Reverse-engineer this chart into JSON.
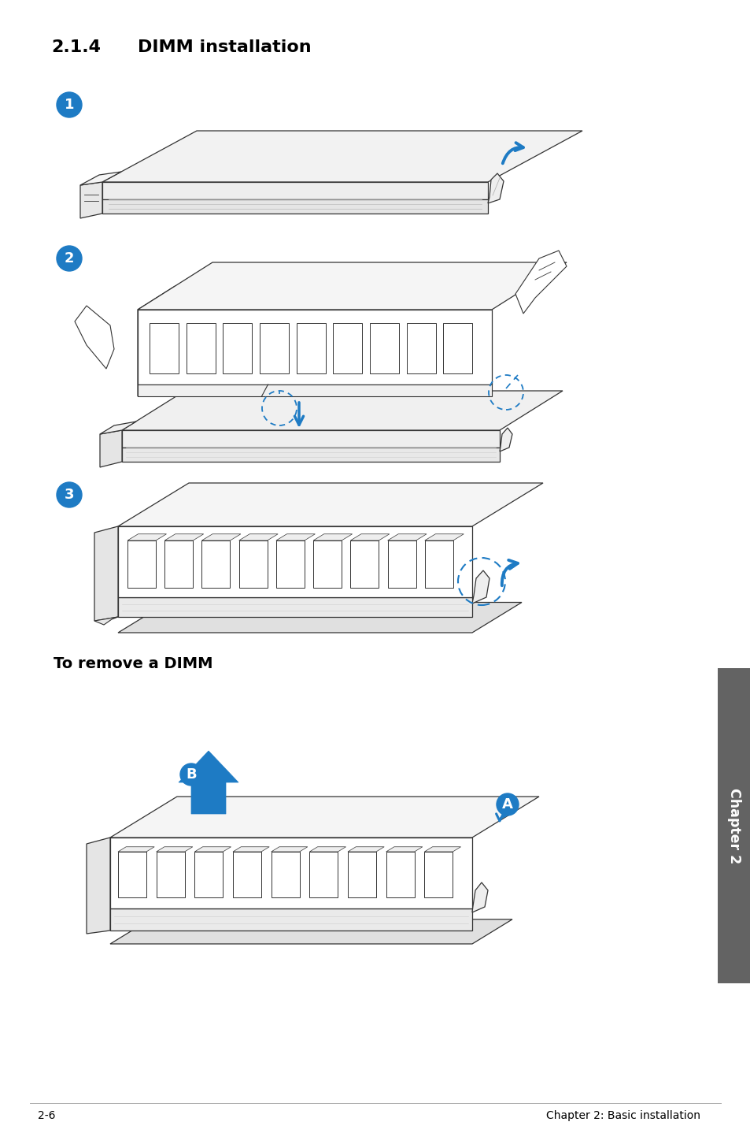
{
  "title_prefix": "2.1.4",
  "title_main": "DIMM installation",
  "footer_left": "2-6",
  "footer_right": "Chapter 2: Basic installation",
  "to_remove_text": "To remove a DIMM",
  "blue_color": "#1e7bc4",
  "bg_color": "#ffffff",
  "text_color": "#000000",
  "line_color": "#333333",
  "chapter_tab_color": "#636363",
  "chapter_tab_text": "Chapter 2",
  "dpi": 100,
  "fig_width": 9.54,
  "fig_height": 14.38
}
